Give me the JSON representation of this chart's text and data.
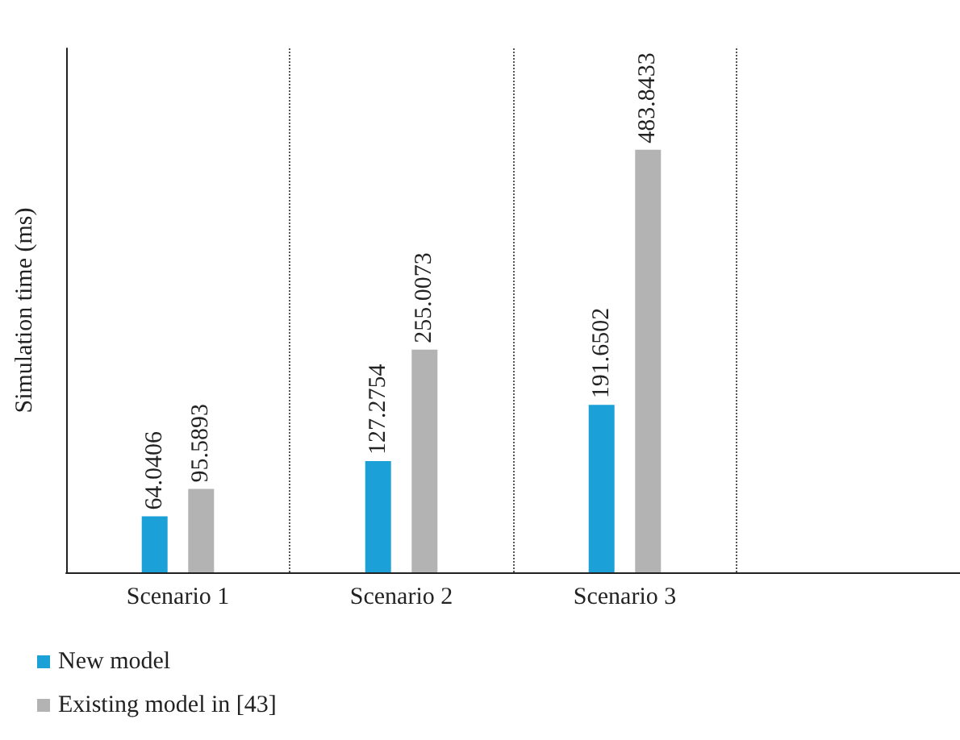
{
  "chart_data": {
    "type": "bar",
    "ylabel": "Simulation time (ms)",
    "categories": [
      "Scenario 1",
      "Scenario 2",
      "Scenario 3",
      null
    ],
    "series": [
      {
        "name": "New model",
        "color": "#1ba1d8",
        "values": [
          64.0406,
          127.2754,
          191.6502,
          null
        ]
      },
      {
        "name": "Existing model in [43]",
        "color": "#b3b3b4",
        "values": [
          95.5893,
          255.0073,
          483.8433,
          null
        ]
      }
    ],
    "data_labels": true,
    "grid": "x",
    "legend": "bottom",
    "tick_labels": "x",
    "marker": "square"
  }
}
